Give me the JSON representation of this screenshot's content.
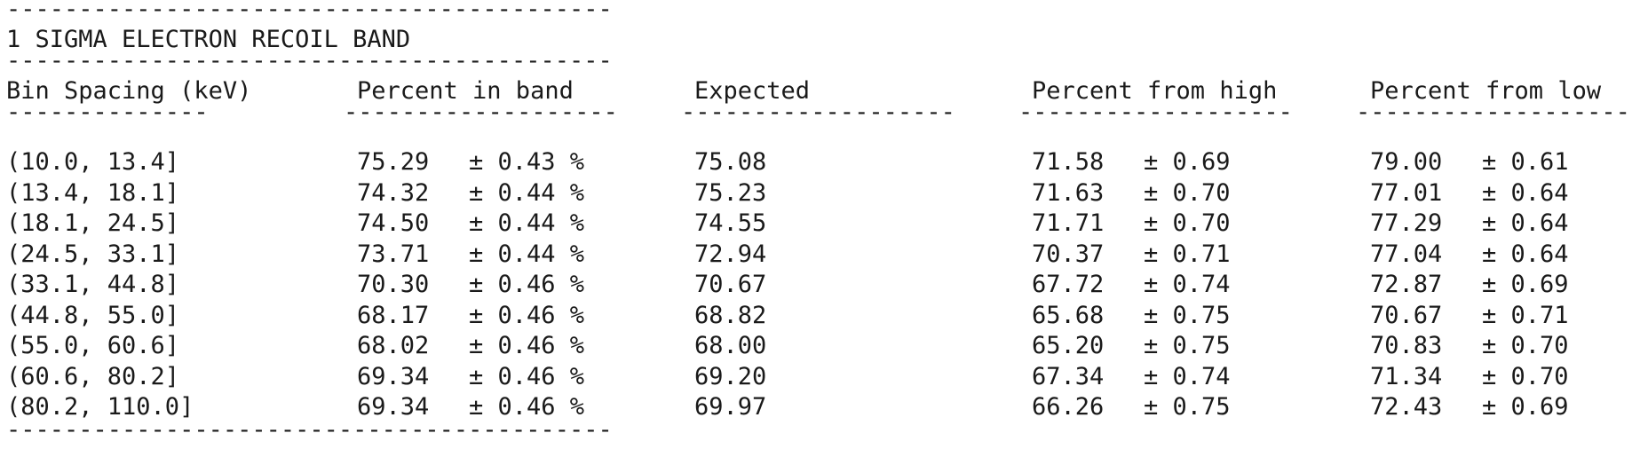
{
  "rule_top": "------------------------------------------",
  "title": "1 SIGMA ELECTRON RECOIL BAND",
  "rule_mid": "------------------------------------------",
  "headers": [
    "Bin Spacing (keV)",
    "Percent in band",
    "Expected",
    "Percent from high",
    "Percent from low"
  ],
  "header_underlines": [
    "--------------",
    "-------------------",
    "-------------------",
    "-------------------",
    "-------------------"
  ],
  "rows": [
    {
      "bin": "(10.0, 13.4]",
      "band_val": "75.29",
      "band_err": "± 0.43 %",
      "expected": "75.08",
      "high_val": "71.58",
      "high_err": "± 0.69",
      "low_val": "79.00",
      "low_err": "± 0.61"
    },
    {
      "bin": "(13.4, 18.1]",
      "band_val": "74.32",
      "band_err": "± 0.44 %",
      "expected": "75.23",
      "high_val": "71.63",
      "high_err": "± 0.70",
      "low_val": "77.01",
      "low_err": "± 0.64"
    },
    {
      "bin": "(18.1, 24.5]",
      "band_val": "74.50",
      "band_err": "± 0.44 %",
      "expected": "74.55",
      "high_val": "71.71",
      "high_err": "± 0.70",
      "low_val": "77.29",
      "low_err": "± 0.64"
    },
    {
      "bin": "(24.5, 33.1]",
      "band_val": "73.71",
      "band_err": "± 0.44 %",
      "expected": "72.94",
      "high_val": "70.37",
      "high_err": "± 0.71",
      "low_val": "77.04",
      "low_err": "± 0.64"
    },
    {
      "bin": "(33.1, 44.8]",
      "band_val": "70.30",
      "band_err": "± 0.46 %",
      "expected": "70.67",
      "high_val": "67.72",
      "high_err": "± 0.74",
      "low_val": "72.87",
      "low_err": "± 0.69"
    },
    {
      "bin": "(44.8, 55.0]",
      "band_val": "68.17",
      "band_err": "± 0.46 %",
      "expected": "68.82",
      "high_val": "65.68",
      "high_err": "± 0.75",
      "low_val": "70.67",
      "low_err": "± 0.71"
    },
    {
      "bin": "(55.0, 60.6]",
      "band_val": "68.02",
      "band_err": "± 0.46 %",
      "expected": "68.00",
      "high_val": "65.20",
      "high_err": "± 0.75",
      "low_val": "70.83",
      "low_err": "± 0.70"
    },
    {
      "bin": "(60.6, 80.2]",
      "band_val": "69.34",
      "band_err": "± 0.46 %",
      "expected": "69.20",
      "high_val": "67.34",
      "high_err": "± 0.74",
      "low_val": "71.34",
      "low_err": "± 0.70"
    },
    {
      "bin": "(80.2, 110.0]",
      "band_val": "69.34",
      "band_err": "± 0.46 %",
      "expected": "69.97",
      "high_val": "66.26",
      "high_err": "± 0.75",
      "low_val": "72.43",
      "low_err": "± 0.69"
    }
  ],
  "rule_bottom": "------------------------------------------"
}
